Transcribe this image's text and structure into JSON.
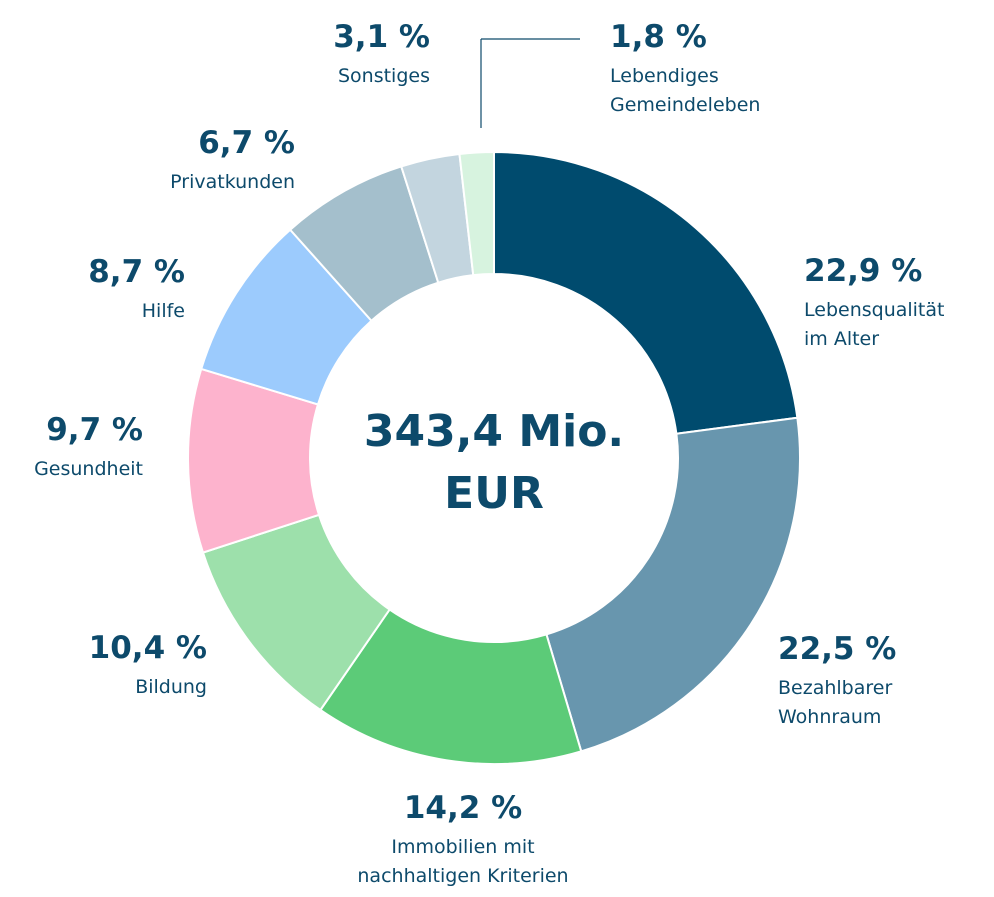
{
  "chart_data": {
    "type": "pie",
    "donut": true,
    "center_label": [
      "343,4 Mio.",
      "EUR"
    ],
    "slices": [
      {
        "label": [
          "Lebensqualität",
          "im Alter"
        ],
        "value": 22.9,
        "value_label": "22,9 %",
        "color": "#004b6e"
      },
      {
        "label": [
          "Bezahlbarer",
          "Wohnraum"
        ],
        "value": 22.5,
        "value_label": "22,5 %",
        "color": "#6896ae"
      },
      {
        "label": [
          "Immobilien mit",
          "nachhaltigen Kriterien"
        ],
        "value": 14.2,
        "value_label": "14,2 %",
        "color": "#5ccb78"
      },
      {
        "label": [
          "Bildung"
        ],
        "value": 10.4,
        "value_label": "10,4 %",
        "color": "#9de0ab"
      },
      {
        "label": [
          "Gesundheit"
        ],
        "value": 9.7,
        "value_label": "9,7 %",
        "color": "#fdb3cd"
      },
      {
        "label": [
          "Hilfe"
        ],
        "value": 8.7,
        "value_label": "8,7 %",
        "color": "#9ccbfd"
      },
      {
        "label": [
          "Privatkunden"
        ],
        "value": 6.7,
        "value_label": "6,7 %",
        "color": "#a4bfcc"
      },
      {
        "label": [
          "Sonstiges"
        ],
        "value": 3.1,
        "value_label": "3,1 %",
        "color": "#c3d5df"
      },
      {
        "label": [
          "Lebendiges",
          "Gemeindeleben"
        ],
        "value": 1.8,
        "value_label": "1,8 %",
        "color": "#d7f3df"
      }
    ]
  }
}
